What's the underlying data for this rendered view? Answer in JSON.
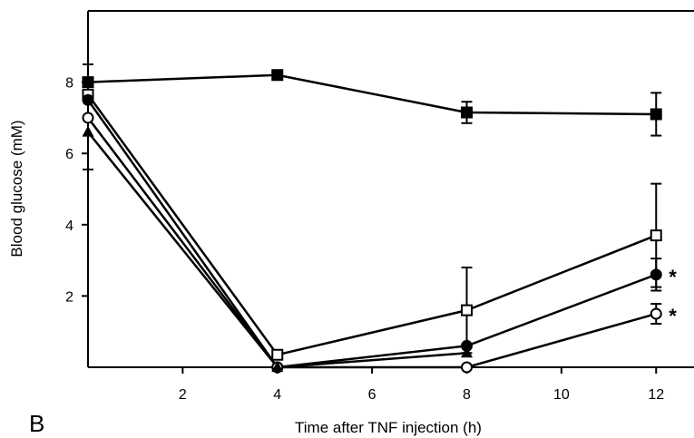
{
  "chart_data": {
    "type": "line",
    "panel_label": "B",
    "xlabel": "Time after TNF injection (h)",
    "ylabel": "Blood glucose (mM)",
    "xlim": [
      0,
      12.8
    ],
    "ylim": [
      0,
      10
    ],
    "xticks": [
      2,
      4,
      6,
      8,
      10,
      12
    ],
    "yticks": [
      2,
      4,
      6,
      8
    ],
    "grid": false,
    "legend": "none",
    "series": [
      {
        "marker": "filled-square",
        "x": [
          0,
          4,
          8,
          12
        ],
        "y": [
          8.0,
          8.2,
          7.15,
          7.1
        ],
        "err": [
          0.5,
          0,
          0.3,
          0.6
        ]
      },
      {
        "marker": "open-square",
        "x": [
          0,
          4,
          8,
          12
        ],
        "y": [
          7.65,
          0.35,
          1.6,
          3.7
        ],
        "err": [
          0,
          0,
          1.2,
          1.45
        ]
      },
      {
        "marker": "filled-circle",
        "x": [
          0,
          4,
          8,
          12
        ],
        "y": [
          7.5,
          0.0,
          0.6,
          2.6
        ],
        "err": [
          0,
          0,
          0,
          0.45
        ]
      },
      {
        "marker": "open-circle",
        "x": [
          0,
          4,
          8,
          12
        ],
        "y": [
          7.0,
          0.0,
          0.0,
          1.5
        ],
        "err": [
          0,
          0,
          0,
          0.28
        ]
      },
      {
        "marker": "filled-triangle",
        "x": [
          0,
          4,
          8,
          12
        ],
        "y": [
          6.6,
          0.0,
          0.4,
          null
        ],
        "err": [
          1.05,
          0,
          0,
          0
        ]
      }
    ],
    "annotations": [
      {
        "text": "*",
        "x": 12,
        "y": 2.6
      },
      {
        "text": "*",
        "x": 12,
        "y": 1.5
      }
    ]
  }
}
